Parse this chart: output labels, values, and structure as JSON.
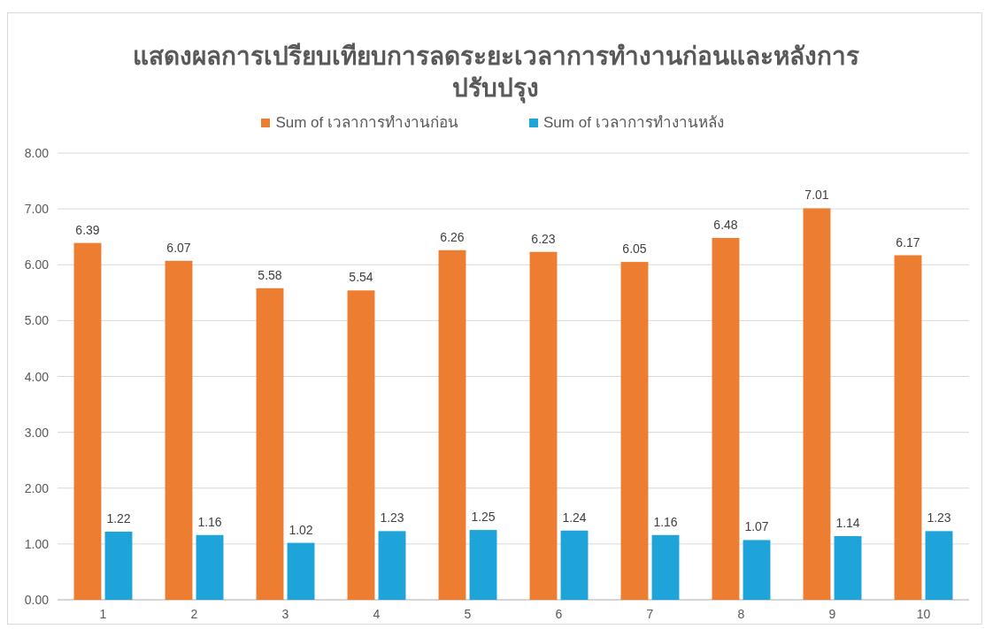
{
  "chart_data": {
    "type": "bar",
    "title": "แสดงผลการเปรียบเทียบการลดระยะเวลาการทำงานก่อนและหลังการปรับปรุง",
    "categories": [
      "1",
      "2",
      "3",
      "4",
      "5",
      "6",
      "7",
      "8",
      "9",
      "10"
    ],
    "series": [
      {
        "name": "Sum of เวลาการทำงานก่อน",
        "color": "#ed7d31",
        "values": [
          6.39,
          6.07,
          5.58,
          5.54,
          6.26,
          6.23,
          6.05,
          6.48,
          7.01,
          6.17
        ]
      },
      {
        "name": "Sum of เวลาการทำงานหลัง",
        "color": "#1ea4d8",
        "values": [
          1.22,
          1.16,
          1.02,
          1.23,
          1.25,
          1.24,
          1.16,
          1.07,
          1.14,
          1.23
        ]
      }
    ],
    "ylim": [
      0,
      8
    ],
    "yticks": [
      {
        "value": 0,
        "label": "0.00"
      },
      {
        "value": 1,
        "label": "1.00"
      },
      {
        "value": 2,
        "label": "2.00"
      },
      {
        "value": 3,
        "label": "3.00"
      },
      {
        "value": 4,
        "label": "4.00"
      },
      {
        "value": 5,
        "label": "5.00"
      },
      {
        "value": 6,
        "label": "6.00"
      },
      {
        "value": 7,
        "label": "7.00"
      },
      {
        "value": 8,
        "label": "8.00"
      }
    ],
    "grid": "y",
    "legend": "top",
    "data_labels": true
  }
}
